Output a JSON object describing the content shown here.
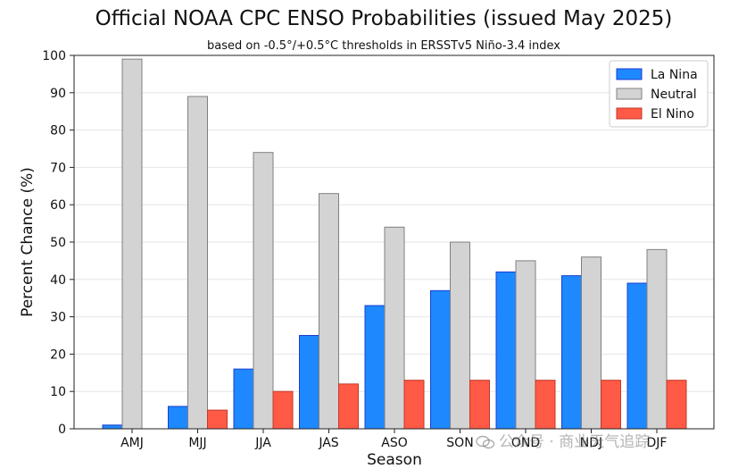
{
  "chart_data": {
    "type": "bar",
    "title": "Official NOAA CPC ENSO Probabilities (issued May 2025)",
    "subtitle": "based on -0.5°/+0.5°C thresholds in ERSSTv5 Niño-3.4 index",
    "xlabel": "Season",
    "ylabel": "Percent Chance (%)",
    "ylim": [
      0,
      100
    ],
    "yticks": [
      0,
      10,
      20,
      30,
      40,
      50,
      60,
      70,
      80,
      90,
      100
    ],
    "categories": [
      "AMJ",
      "MJJ",
      "JJA",
      "JAS",
      "ASO",
      "SON",
      "OND",
      "NDJ",
      "DJF"
    ],
    "series": [
      {
        "name": "La Nina",
        "color": "#1e88ff",
        "edge": "#1a3fd0",
        "values": [
          1,
          6,
          16,
          25,
          33,
          37,
          42,
          41,
          39
        ]
      },
      {
        "name": "Neutral",
        "color": "#d3d3d3",
        "edge": "#808080",
        "values": [
          99,
          89,
          74,
          63,
          54,
          50,
          45,
          46,
          48
        ]
      },
      {
        "name": "El Nino",
        "color": "#ff5a45",
        "edge": "#c0392b",
        "values": [
          0,
          5,
          10,
          12,
          13,
          13,
          13,
          13,
          13
        ]
      }
    ],
    "grid": true,
    "legend": "top-right"
  },
  "watermark": {
    "text": "公众号 · 商业天气追踪",
    "icon": "wechat-icon"
  }
}
